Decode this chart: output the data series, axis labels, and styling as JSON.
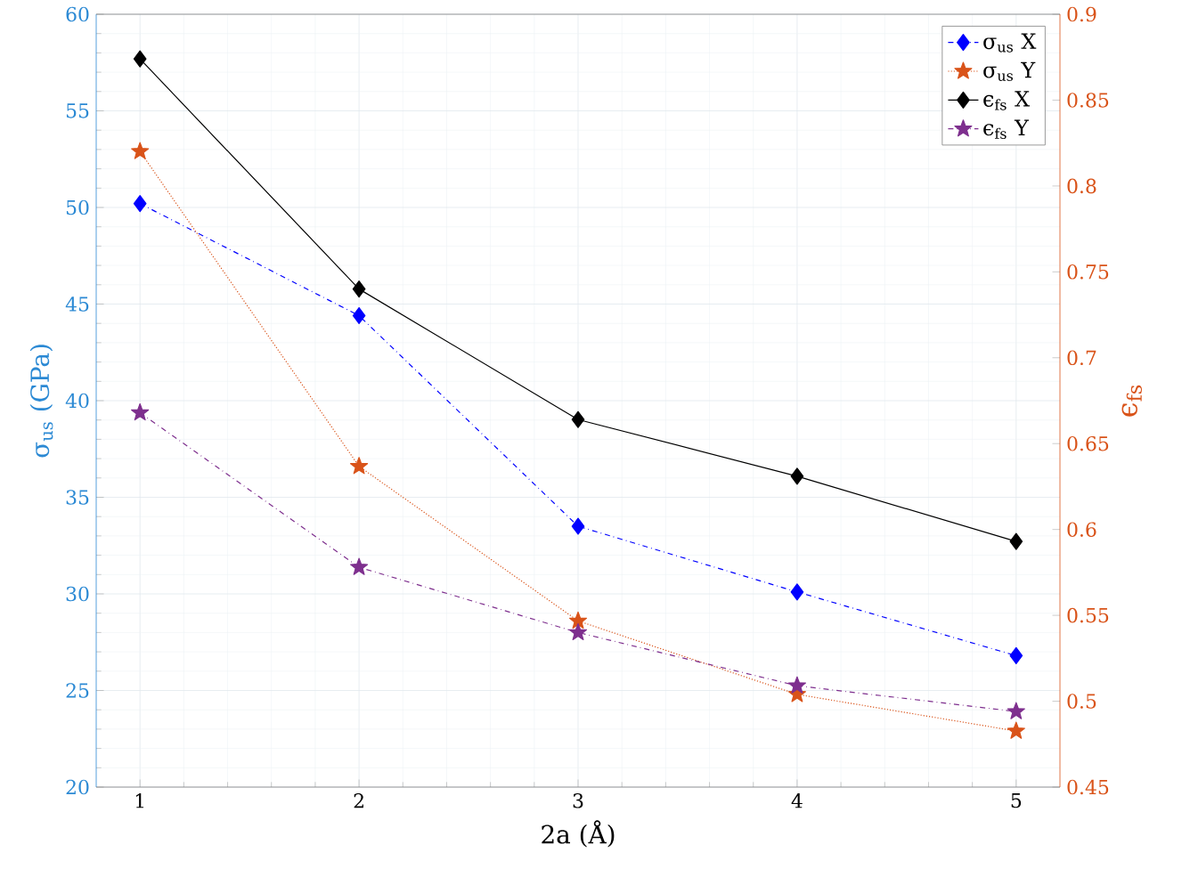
{
  "chart_data": {
    "type": "line",
    "xlabel": "2a (Å)",
    "ylabel": "σ$_{us}$ (GPa)",
    "y2label": "ϵ$_{fs}$",
    "x": [
      1,
      2,
      3,
      4,
      5
    ],
    "xlim": [
      0.8,
      5.2
    ],
    "xticks": [
      1,
      2,
      3,
      4,
      5
    ],
    "ylim": [
      20,
      60
    ],
    "yticks": [
      20,
      25,
      30,
      35,
      40,
      45,
      50,
      55,
      60
    ],
    "y2lim": [
      0.45,
      0.9
    ],
    "y2ticks": [
      0.45,
      0.5,
      0.55,
      0.6,
      0.65,
      0.7,
      0.75,
      0.8,
      0.85,
      0.9
    ],
    "grid": true,
    "legend": "top right",
    "series": [
      {
        "name": "σ$_{us}$ X",
        "color": "#0000ff",
        "marker": "diamond",
        "line_style": "dashdot",
        "values": [
          50.2,
          44.4,
          33.5,
          30.1,
          26.8
        ]
      },
      {
        "name": "σ$_{us}$ Y",
        "color": "#d95319",
        "marker": "star",
        "line_style": "dotted",
        "values": [
          52.9,
          36.6,
          28.6,
          24.8,
          22.9
        ]
      },
      {
        "name": "ϵ$_{fs}$ X",
        "color": "#000000",
        "marker": "diamond",
        "line_style": "solid",
        "axis": "y2",
        "values": [
          0.874,
          0.74,
          0.664,
          0.631,
          0.593
        ]
      },
      {
        "name": "ϵ$_{fs}$ Y",
        "color": "#7e2f8e",
        "marker": "star",
        "line_style": "dashdot",
        "axis": "y2",
        "values": [
          0.668,
          0.578,
          0.54,
          0.509,
          0.494
        ]
      }
    ]
  }
}
